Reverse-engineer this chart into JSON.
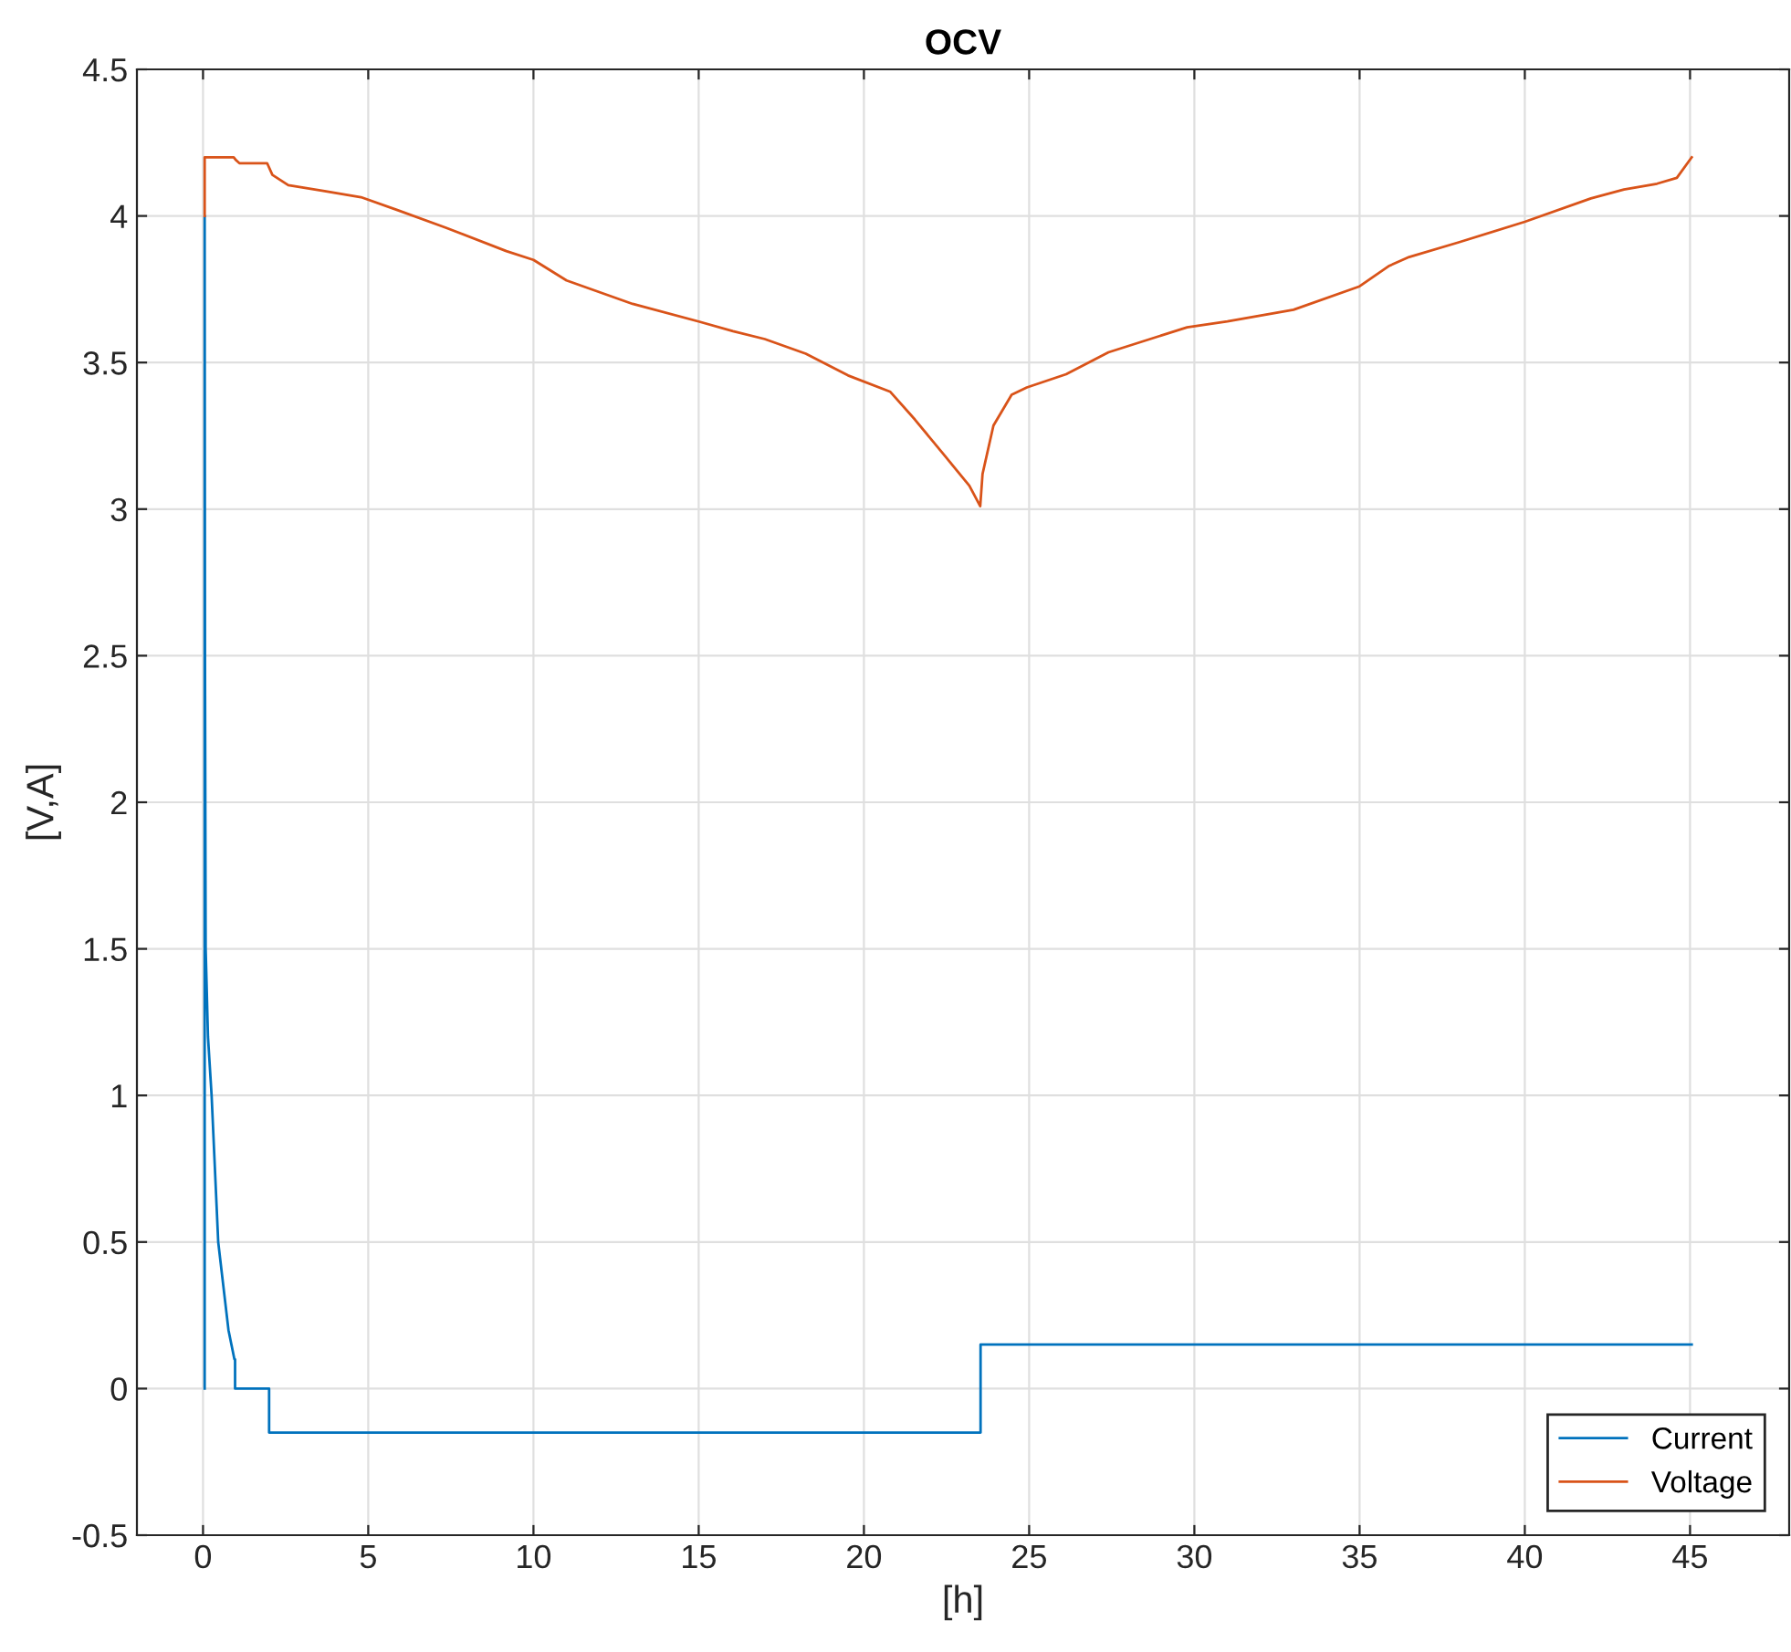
{
  "chart_data": {
    "type": "line",
    "title": "OCV",
    "xlabel": "[h]",
    "ylabel": "[V,A]",
    "xlim": [
      -2,
      48
    ],
    "xticks": [
      0,
      5,
      10,
      15,
      20,
      25,
      30,
      35,
      40,
      45
    ],
    "ylim": [
      -0.5,
      4.5
    ],
    "yticks": [
      -0.5,
      0,
      0.5,
      1,
      1.5,
      2,
      2.5,
      3,
      3.5,
      4,
      4.5
    ],
    "grid": true,
    "legend": "bottom right",
    "marker": "none",
    "line_style": "solid",
    "series": [
      {
        "name": "Current",
        "color": "#0072bd",
        "x": [
          0.05,
          0.05,
          0.06,
          0.08,
          0.15,
          0.26,
          0.46,
          0.77,
          0.95,
          0.97,
          0.97,
          2.0,
          2.0,
          23.53,
          23.53,
          45.05
        ],
        "values": [
          0,
          4.0,
          2.5,
          1.5,
          1.2,
          1.0,
          0.5,
          0.2,
          0.1,
          0.1,
          0,
          0,
          -0.15,
          -0.15,
          0.15,
          0.15
        ]
      },
      {
        "name": "Voltage",
        "color": "#d95319",
        "x": [
          0.05,
          0.05,
          0.93,
          1.0,
          1.1,
          1.94,
          2.1,
          2.58,
          3.68,
          4.78,
          5.88,
          7.35,
          9.18,
          10,
          11,
          13,
          15,
          16.04,
          17,
          18.24,
          19.52,
          20.8,
          21.54,
          22.46,
          23.19,
          23.52,
          23.59,
          23.92,
          24.47,
          24.93,
          26.12,
          27.4,
          29.78,
          31,
          33,
          35,
          35.9,
          36.5,
          38,
          40,
          42,
          43,
          44,
          44.6,
          45.05
        ],
        "values": [
          4.0,
          4.2,
          4.2,
          4.19,
          4.18,
          4.18,
          4.14,
          4.105,
          4.085,
          4.064,
          4.02,
          3.96,
          3.88,
          3.85,
          3.78,
          3.7,
          3.64,
          3.607,
          3.58,
          3.53,
          3.456,
          3.4,
          3.306,
          3.18,
          3.08,
          3.01,
          3.12,
          3.285,
          3.39,
          3.415,
          3.46,
          3.535,
          3.62,
          3.64,
          3.68,
          3.76,
          3.83,
          3.86,
          3.91,
          3.98,
          4.06,
          4.09,
          4.11,
          4.13,
          4.2
        ]
      }
    ]
  }
}
